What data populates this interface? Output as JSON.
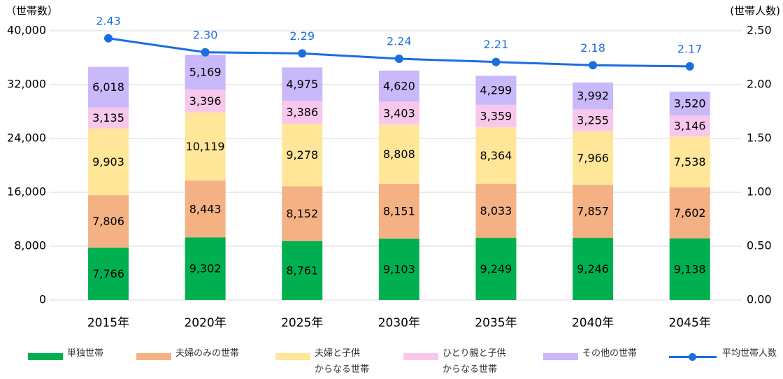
{
  "chart_data": {
    "type": "bar",
    "y_label": "（世帯数）",
    "y2_label": "(世帯人数)",
    "categories": [
      "2015年",
      "2020年",
      "2025年",
      "2030年",
      "2035年",
      "2040年",
      "2045年"
    ],
    "series": [
      {
        "name": "単独世帯",
        "color": "#00b050",
        "values": [
          7766,
          9302,
          8761,
          9103,
          9249,
          9246,
          9138
        ],
        "value_labels": [
          "7,766",
          "9,302",
          "8,761",
          "9,103",
          "9,249",
          "9,246",
          "9,138"
        ]
      },
      {
        "name": "夫婦のみの世帯",
        "color": "#f4b183",
        "values": [
          7806,
          8443,
          8152,
          8151,
          8033,
          7857,
          7602
        ],
        "value_labels": [
          "7,806",
          "8,443",
          "8,152",
          "8,151",
          "8,033",
          "7,857",
          "7,602"
        ]
      },
      {
        "name": "夫婦と子供\nからなる世帯",
        "color": "#ffe699",
        "values": [
          9903,
          10119,
          9278,
          8808,
          8364,
          7966,
          7538
        ],
        "value_labels": [
          "9,903",
          "10,119",
          "9,278",
          "8,808",
          "8,364",
          "7,966",
          "7,538"
        ]
      },
      {
        "name": "ひとり親と子供\nからなる世帯",
        "color": "#f8c8ec",
        "values": [
          3135,
          3396,
          3386,
          3403,
          3359,
          3255,
          3146
        ],
        "value_labels": [
          "3,135",
          "3,396",
          "3,386",
          "3,403",
          "3,359",
          "3,255",
          "3,146"
        ]
      },
      {
        "name": "その他の世帯",
        "color": "#c9b8fa",
        "values": [
          6018,
          5169,
          4975,
          4620,
          4299,
          3992,
          3520
        ],
        "value_labels": [
          "6,018",
          "5,169",
          "4,975",
          "4,620",
          "4,299",
          "3,992",
          "3,520"
        ]
      },
      {
        "name": "平均世帯人数",
        "color": "#1a6ee0",
        "type": "line",
        "axis": "y2",
        "values": [
          2.43,
          2.3,
          2.29,
          2.24,
          2.21,
          2.18,
          2.17
        ],
        "value_labels": [
          "2.43",
          "2.30",
          "2.29",
          "2.24",
          "2.21",
          "2.18",
          "2.17"
        ]
      }
    ],
    "ylim": [
      0,
      40000
    ],
    "yticks": [
      0,
      {
        "value": 8000,
        "label": "8,000"
      },
      {
        "value": 16000,
        "label": "16,000"
      },
      {
        "value": 24000,
        "label": "24,000"
      },
      {
        "value": 32000,
        "label": "32,000"
      },
      {
        "value": 40000,
        "label": "40,000"
      }
    ],
    "y2lim": [
      0,
      2.5
    ],
    "y2ticks": [
      {
        "value": 0,
        "label": "0.00"
      },
      {
        "value": 0.5,
        "label": "0.50"
      },
      {
        "value": 1,
        "label": "1.00"
      },
      {
        "value": 1.5,
        "label": "1.50"
      },
      {
        "value": 2,
        "label": "2.00"
      },
      {
        "value": 2.5,
        "label": "2.50"
      }
    ],
    "grid": true,
    "stacked": true,
    "legend": "bottom"
  }
}
